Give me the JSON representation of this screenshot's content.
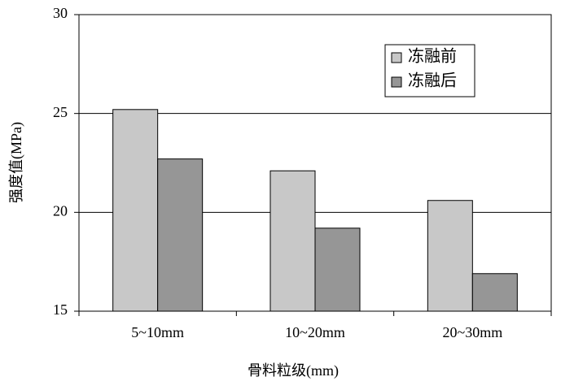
{
  "chart_data": {
    "type": "bar",
    "x_label": "骨料粒级(mm)",
    "y_label": "强度值(MPa)",
    "categories": [
      "5~10mm",
      "10~20mm",
      "20~30mm"
    ],
    "series": [
      {
        "name": "冻融前",
        "color": "#c8c8c8",
        "values": [
          25.2,
          22.1,
          20.6
        ]
      },
      {
        "name": "冻融后",
        "color": "#969696",
        "values": [
          22.7,
          19.2,
          16.9
        ]
      }
    ],
    "ylim": [
      15,
      30
    ],
    "yticks": [
      15,
      20,
      25,
      30
    ],
    "grid": true,
    "legend": "upper right"
  }
}
